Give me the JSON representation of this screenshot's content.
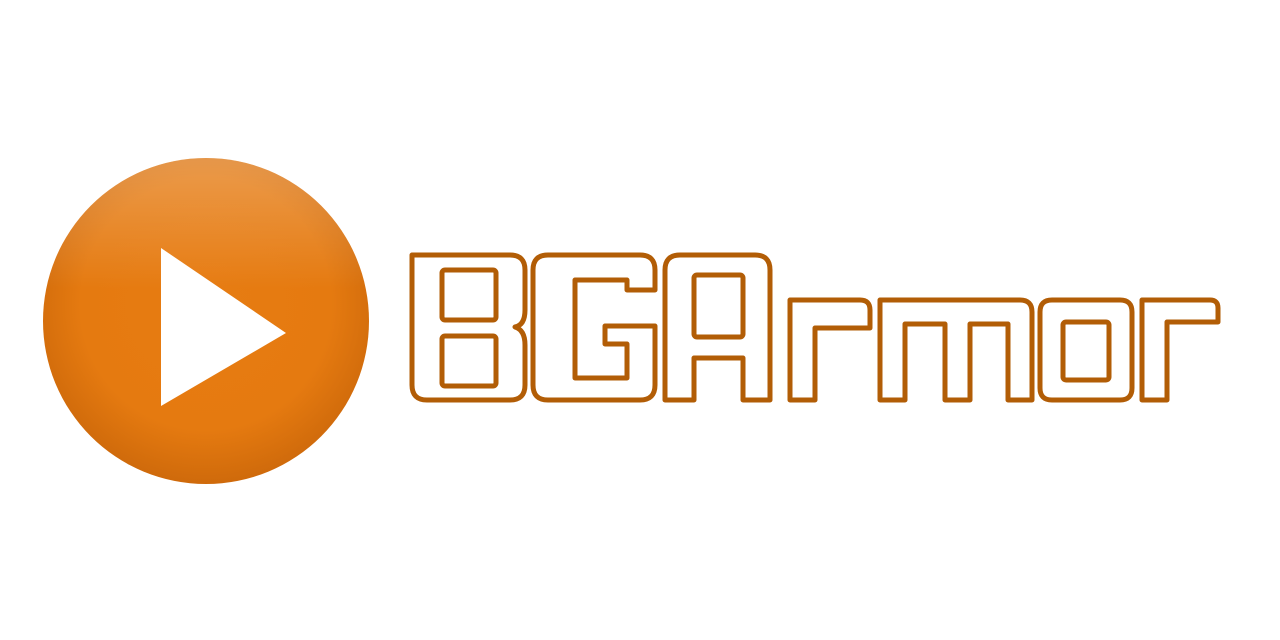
{
  "logo": {
    "wordmark_text": "BGArmor",
    "play_icon": "play-icon",
    "colors": {
      "circle_light": "#F0A040",
      "circle_mid": "#E5790F",
      "circle_dark": "#C9650A",
      "play_triangle": "#FFFFFF",
      "wordmark_stroke": "#B25D06",
      "background": "#FFFFFF"
    }
  }
}
